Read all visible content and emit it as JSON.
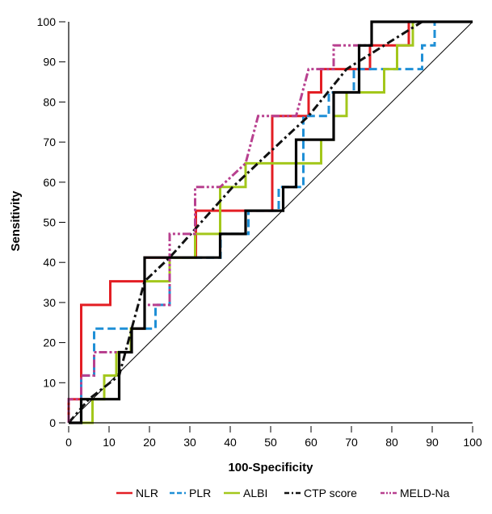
{
  "chart_data": {
    "type": "line",
    "title": "",
    "xlabel": "100-Specificity",
    "ylabel": "Sensitivity",
    "xlim": [
      0,
      100
    ],
    "ylim": [
      0,
      100
    ],
    "xticks": [
      0,
      10,
      20,
      30,
      40,
      50,
      60,
      70,
      80,
      90,
      100
    ],
    "yticks": [
      0,
      10,
      20,
      30,
      40,
      50,
      60,
      70,
      80,
      90,
      100
    ],
    "grid": false,
    "legend_position": "bottom",
    "reference_line": [
      [
        0,
        0
      ],
      [
        100,
        100
      ]
    ],
    "series": [
      {
        "name": "NLR",
        "color": "#e31e24",
        "dash": "solid",
        "points": [
          [
            0,
            0
          ],
          [
            0,
            5.9
          ],
          [
            3.1,
            5.9
          ],
          [
            3.1,
            11.8
          ],
          [
            3.1,
            29.4
          ],
          [
            10.3,
            29.4
          ],
          [
            10.3,
            35.3
          ],
          [
            18.8,
            35.3
          ],
          [
            18.8,
            41.2
          ],
          [
            31.5,
            41.2
          ],
          [
            31.5,
            52.9
          ],
          [
            50.4,
            52.9
          ],
          [
            50.4,
            76.5
          ],
          [
            59.4,
            76.5
          ],
          [
            59.4,
            82.4
          ],
          [
            62.5,
            82.4
          ],
          [
            62.5,
            88.2
          ],
          [
            74.6,
            88.2
          ],
          [
            74.6,
            94.1
          ],
          [
            84.2,
            94.1
          ],
          [
            84.2,
            100
          ],
          [
            100,
            100
          ]
        ]
      },
      {
        "name": "PLR",
        "color": "#1f8fd6",
        "dash": "dashed",
        "points": [
          [
            0,
            0
          ],
          [
            3.1,
            0
          ],
          [
            3.1,
            11.8
          ],
          [
            6.3,
            11.8
          ],
          [
            6.3,
            23.5
          ],
          [
            21.5,
            23.5
          ],
          [
            21.5,
            29.4
          ],
          [
            25,
            29.4
          ],
          [
            25,
            35.3
          ],
          [
            25,
            41.2
          ],
          [
            37.6,
            41.2
          ],
          [
            37.6,
            47.1
          ],
          [
            44.5,
            47.1
          ],
          [
            44.5,
            52.9
          ],
          [
            52,
            52.9
          ],
          [
            52,
            58.8
          ],
          [
            58.1,
            58.8
          ],
          [
            58.1,
            76.5
          ],
          [
            64.4,
            76.5
          ],
          [
            64.4,
            82.4
          ],
          [
            70.6,
            82.4
          ],
          [
            70.6,
            88.2
          ],
          [
            87.5,
            88.2
          ],
          [
            87.5,
            94.1
          ],
          [
            90.6,
            94.1
          ],
          [
            90.6,
            100
          ],
          [
            100,
            100
          ]
        ]
      },
      {
        "name": "ALBI",
        "color": "#a3c71b",
        "dash": "solid",
        "points": [
          [
            0,
            0
          ],
          [
            5.9,
            0
          ],
          [
            5.9,
            5.9
          ],
          [
            8.8,
            5.9
          ],
          [
            8.8,
            11.8
          ],
          [
            11.8,
            11.8
          ],
          [
            11.8,
            17.6
          ],
          [
            15.4,
            17.6
          ],
          [
            15.4,
            23.5
          ],
          [
            18.8,
            23.5
          ],
          [
            18.8,
            35.3
          ],
          [
            25,
            35.3
          ],
          [
            25,
            41.2
          ],
          [
            31.3,
            41.2
          ],
          [
            31.3,
            47.1
          ],
          [
            37.5,
            47.1
          ],
          [
            37.5,
            58.8
          ],
          [
            43.8,
            58.8
          ],
          [
            43.8,
            64.7
          ],
          [
            62.5,
            64.7
          ],
          [
            62.5,
            70.6
          ],
          [
            65.6,
            70.6
          ],
          [
            65.6,
            76.5
          ],
          [
            68.8,
            76.5
          ],
          [
            68.8,
            82.4
          ],
          [
            78.1,
            82.4
          ],
          [
            78.1,
            88.2
          ],
          [
            81.3,
            88.2
          ],
          [
            81.3,
            94.1
          ],
          [
            85.2,
            94.1
          ],
          [
            85.2,
            100
          ],
          [
            100,
            100
          ]
        ]
      },
      {
        "name": "CTP score",
        "color": "#111111",
        "dash": "dash-dot",
        "points": [
          [
            0,
            0
          ],
          [
            5,
            5.9
          ],
          [
            12.5,
            11.8
          ],
          [
            15.6,
            23.5
          ],
          [
            18.8,
            35.3
          ],
          [
            25,
            41.2
          ],
          [
            40.6,
            58.8
          ],
          [
            53.1,
            70.6
          ],
          [
            59.4,
            76.5
          ],
          [
            68.8,
            88.2
          ],
          [
            78.1,
            94.1
          ],
          [
            87.5,
            100
          ],
          [
            100,
            100
          ]
        ]
      },
      {
        "name": "MELD-Na",
        "color": "#b8408f",
        "dash": "dash-dot-dot",
        "points": [
          [
            0,
            0
          ],
          [
            0,
            5.9
          ],
          [
            3.1,
            5.9
          ],
          [
            3.1,
            11.8
          ],
          [
            6.3,
            11.8
          ],
          [
            6.3,
            17.6
          ],
          [
            15.6,
            17.6
          ],
          [
            15.6,
            23.5
          ],
          [
            18.8,
            23.5
          ],
          [
            18.8,
            29.4
          ],
          [
            25,
            29.4
          ],
          [
            25,
            47.1
          ],
          [
            31.3,
            47.1
          ],
          [
            31.3,
            58.8
          ],
          [
            37.5,
            58.8
          ],
          [
            43.8,
            64.7
          ],
          [
            46.9,
            76.5
          ],
          [
            56.3,
            76.5
          ],
          [
            59.4,
            88.2
          ],
          [
            65.6,
            88.2
          ],
          [
            65.6,
            94.1
          ],
          [
            75,
            94.1
          ],
          [
            75,
            100
          ],
          [
            100,
            100
          ]
        ]
      },
      {
        "name": "",
        "color": "#000000",
        "dash": "solid-thick",
        "points": [
          [
            0,
            0
          ],
          [
            3.1,
            0
          ],
          [
            3.1,
            5.9
          ],
          [
            12.5,
            5.9
          ],
          [
            12.5,
            17.6
          ],
          [
            15.6,
            17.6
          ],
          [
            15.6,
            23.5
          ],
          [
            18.8,
            23.5
          ],
          [
            18.8,
            35.3
          ],
          [
            18.8,
            41.2
          ],
          [
            37.5,
            41.2
          ],
          [
            37.5,
            47.1
          ],
          [
            43.8,
            47.1
          ],
          [
            43.8,
            52.9
          ],
          [
            53.1,
            52.9
          ],
          [
            53.1,
            58.8
          ],
          [
            56.3,
            58.8
          ],
          [
            56.3,
            70.6
          ],
          [
            65.6,
            70.6
          ],
          [
            65.6,
            76.5
          ],
          [
            65.6,
            82.4
          ],
          [
            71.9,
            82.4
          ],
          [
            71.9,
            88.2
          ],
          [
            71.9,
            94.1
          ],
          [
            75,
            94.1
          ],
          [
            75,
            100
          ],
          [
            100,
            100
          ]
        ]
      }
    ]
  }
}
